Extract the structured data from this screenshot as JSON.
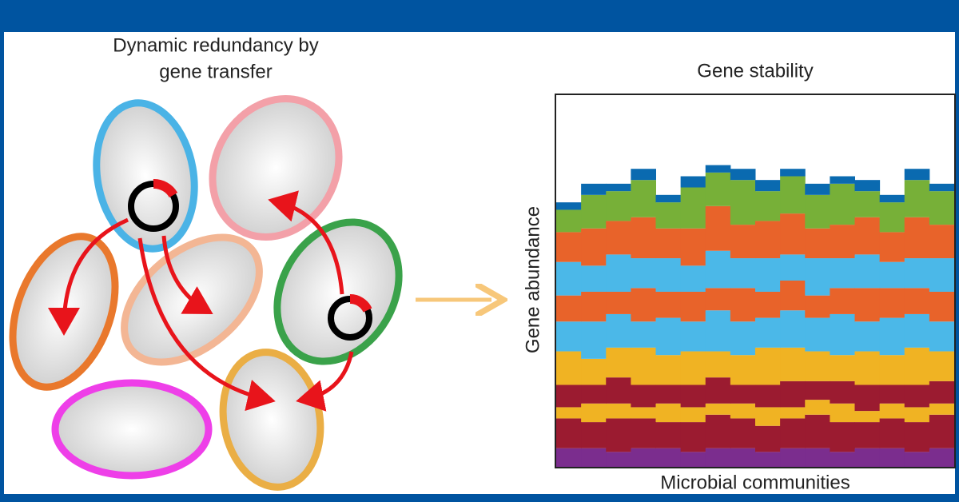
{
  "diagram": {
    "title_lines": [
      "Dynamic redundancy by",
      "gene transfer"
    ]
  },
  "chart_data": {
    "type": "stacked_bar",
    "title": "Gene stability",
    "x_label": "Microbial communities",
    "y_label": "Gene abundance",
    "categories": [
      null,
      null,
      null,
      null,
      null,
      null,
      null,
      null,
      null,
      null,
      null,
      null,
      null,
      null,
      null,
      null
    ],
    "ylim": [
      0,
      100
    ],
    "series": [
      {
        "color": "#7b2d8e",
        "values": [
          5,
          5,
          4,
          5,
          5,
          4,
          5,
          5,
          4,
          5,
          5,
          4,
          5,
          5,
          4,
          5
        ]
      },
      {
        "color": "#9b1b30",
        "values": [
          8,
          7,
          9,
          8,
          7,
          8,
          9,
          8,
          7,
          8,
          9,
          8,
          7,
          8,
          8,
          9
        ]
      },
      {
        "color": "#f0b323",
        "values": [
          3,
          5,
          4,
          3,
          5,
          4,
          3,
          4,
          5,
          3,
          4,
          5,
          3,
          4,
          4,
          3
        ]
      },
      {
        "color": "#9b1b30",
        "values": [
          6,
          5,
          7,
          6,
          5,
          6,
          7,
          5,
          6,
          7,
          5,
          6,
          7,
          5,
          6,
          6
        ]
      },
      {
        "color": "#f0b323",
        "values": [
          9,
          7,
          8,
          10,
          8,
          9,
          7,
          8,
          10,
          9,
          8,
          7,
          9,
          8,
          10,
          8
        ]
      },
      {
        "color": "#4bb8e8",
        "values": [
          8,
          10,
          9,
          7,
          10,
          8,
          11,
          9,
          8,
          10,
          9,
          11,
          8,
          10,
          9,
          8
        ]
      },
      {
        "color": "#e8632a",
        "values": [
          7,
          8,
          6,
          9,
          7,
          8,
          6,
          9,
          7,
          8,
          6,
          7,
          9,
          8,
          7,
          8
        ]
      },
      {
        "color": "#4bb8e8",
        "values": [
          9,
          7,
          10,
          8,
          9,
          7,
          10,
          8,
          9,
          7,
          10,
          8,
          9,
          7,
          8,
          9
        ]
      },
      {
        "color": "#e8632a",
        "values": [
          8,
          10,
          9,
          11,
          8,
          10,
          12,
          9,
          10,
          11,
          8,
          9,
          10,
          8,
          11,
          9
        ]
      },
      {
        "color": "#77b038",
        "values": [
          6,
          9,
          8,
          10,
          7,
          11,
          9,
          12,
          8,
          10,
          9,
          11,
          7,
          8,
          10,
          9
        ]
      },
      {
        "color": "#0a6ab0",
        "values": [
          2,
          3,
          2,
          3,
          2,
          3,
          2,
          3,
          3,
          2,
          3,
          2,
          3,
          2,
          3,
          2
        ]
      }
    ]
  }
}
